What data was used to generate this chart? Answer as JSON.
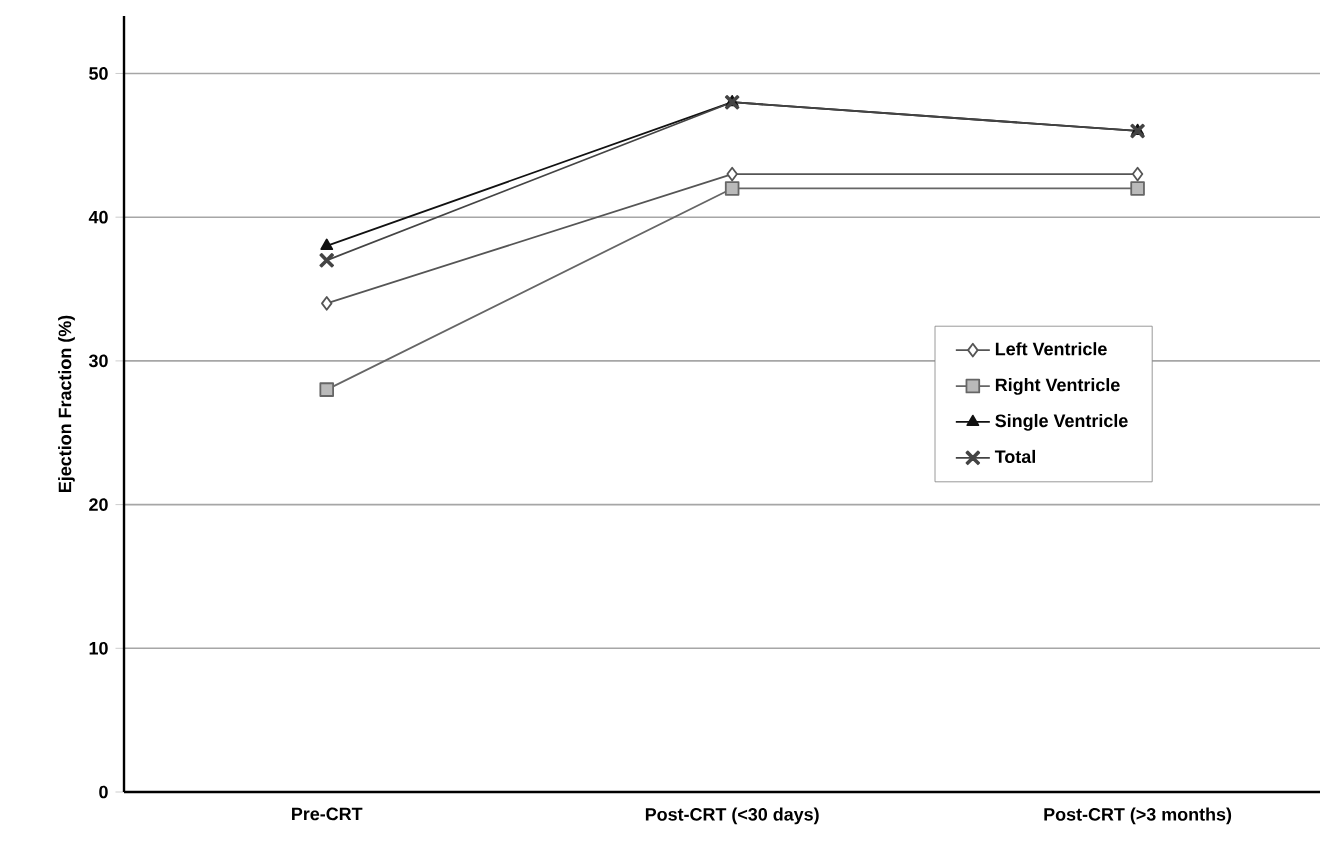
{
  "chart_data": {
    "type": "line",
    "ylabel": "Ejection Fraction (%)",
    "categories": [
      "Pre-CRT",
      "Post-CRT (<30 days)",
      "Post-CRT (>3 months)"
    ],
    "ylim": [
      0,
      54
    ],
    "yticks": [
      0,
      10,
      20,
      30,
      40,
      50
    ],
    "grid": "y",
    "legend": "right",
    "line_style": "solid",
    "series": [
      {
        "name": "Left Ventricle",
        "color": "#555555",
        "marker": "diamond",
        "values": [
          34,
          43,
          43
        ]
      },
      {
        "name": "Right Ventricle",
        "color": "#666666",
        "marker": "square",
        "values": [
          28,
          42,
          42
        ]
      },
      {
        "name": "Single Ventricle",
        "color": "#111111",
        "marker": "triangle",
        "values": [
          38,
          48,
          46
        ]
      },
      {
        "name": "Total",
        "color": "#444444",
        "marker": "cross",
        "values": [
          37,
          48,
          46
        ]
      }
    ]
  }
}
